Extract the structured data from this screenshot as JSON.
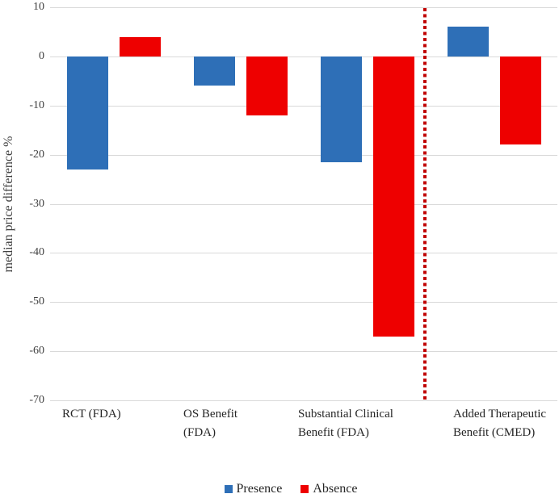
{
  "chart_data": {
    "type": "bar",
    "title": "",
    "ylabel": "median price difference %",
    "ylim": [
      -70,
      10
    ],
    "yticks": [
      10,
      0,
      -10,
      -20,
      -30,
      -40,
      -50,
      -60,
      -70
    ],
    "grid": true,
    "gridline_color": "#d9d9d9",
    "categories": [
      "RCT (FDA)",
      "OS Benefit (FDA)",
      "Substantial Clinical Benefit (FDA)",
      "Added Therapeutic Benefit (CMED)"
    ],
    "category_label_lines": [
      [
        "RCT (FDA)"
      ],
      [
        "OS Benefit",
        "(FDA)"
      ],
      [
        "Substantial Clinical",
        "Benefit (FDA)"
      ],
      [
        "Added Therapeutic",
        "Benefit (CMED)"
      ]
    ],
    "series": [
      {
        "name": "Presence",
        "color": "#2e6fb7",
        "values": [
          -23,
          -6,
          -21.5,
          6
        ]
      },
      {
        "name": "Absence",
        "color": "#ee0000",
        "values": [
          4,
          -12,
          -57,
          -18
        ]
      }
    ],
    "legend": {
      "position": "bottom",
      "entries": [
        "Presence",
        "Absence"
      ]
    },
    "divider": {
      "between": [
        "Substantial Clinical Benefit (FDA)",
        "Added Therapeutic Benefit (CMED)"
      ],
      "color": "#c00000",
      "style": "dotted"
    }
  }
}
